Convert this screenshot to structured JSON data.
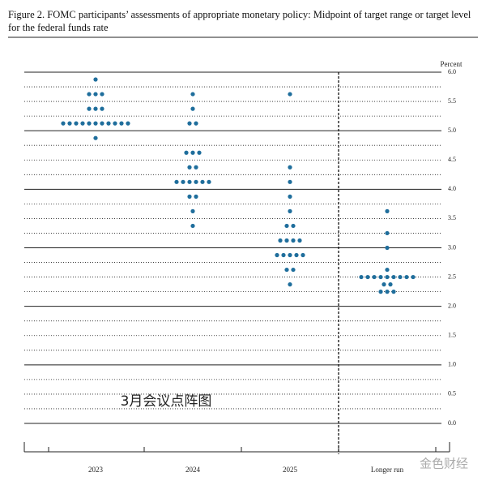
{
  "chart_data": {
    "type": "dot",
    "title": "Figure 2.  FOMC participants’ assessments of appropriate monetary policy: Midpoint of target range or target level for the federal funds rate",
    "y_label": "Percent",
    "annotation": "3月会议点阵图",
    "watermark": "金色财经",
    "color": "#1f6e9c",
    "categories": [
      "2023",
      "2024",
      "2025",
      "Longer run"
    ],
    "values": [
      [
        5.875,
        5.625,
        5.625,
        5.625,
        5.375,
        5.375,
        5.375,
        5.125,
        5.125,
        5.125,
        5.125,
        5.125,
        5.125,
        5.125,
        5.125,
        5.125,
        5.125,
        5.125,
        4.875
      ],
      [
        5.625,
        5.375,
        5.125,
        5.125,
        4.625,
        4.625,
        4.625,
        4.375,
        4.375,
        4.125,
        4.125,
        4.125,
        4.125,
        4.125,
        4.125,
        3.875,
        3.875,
        3.625,
        3.375
      ],
      [
        5.625,
        4.375,
        4.125,
        3.875,
        3.625,
        3.375,
        3.375,
        3.125,
        3.125,
        3.125,
        3.125,
        2.875,
        2.875,
        2.875,
        2.875,
        2.875,
        2.625,
        2.625,
        2.375
      ],
      [
        3.625,
        3.25,
        3.0,
        2.625,
        2.5,
        2.5,
        2.5,
        2.5,
        2.5,
        2.5,
        2.5,
        2.5,
        2.5,
        2.375,
        2.375,
        2.25,
        2.25,
        2.25
      ]
    ],
    "ylim": [
      0,
      6
    ],
    "yticks": [
      {
        "value": 0,
        "label": "0.0"
      },
      {
        "value": 0.5,
        "label": "0.5"
      },
      {
        "value": 1,
        "label": "1.0"
      },
      {
        "value": 1.5,
        "label": "1.5"
      },
      {
        "value": 2,
        "label": "2.0"
      },
      {
        "value": 2.5,
        "label": "2.5"
      },
      {
        "value": 3,
        "label": "3.0"
      },
      {
        "value": 3.5,
        "label": "3.5"
      },
      {
        "value": 4,
        "label": "4.0"
      },
      {
        "value": 4.5,
        "label": "4.5"
      },
      {
        "value": 5,
        "label": "5.0"
      },
      {
        "value": 5.5,
        "label": "5.5"
      },
      {
        "value": 6,
        "label": "6.0"
      }
    ],
    "grid": true
  }
}
